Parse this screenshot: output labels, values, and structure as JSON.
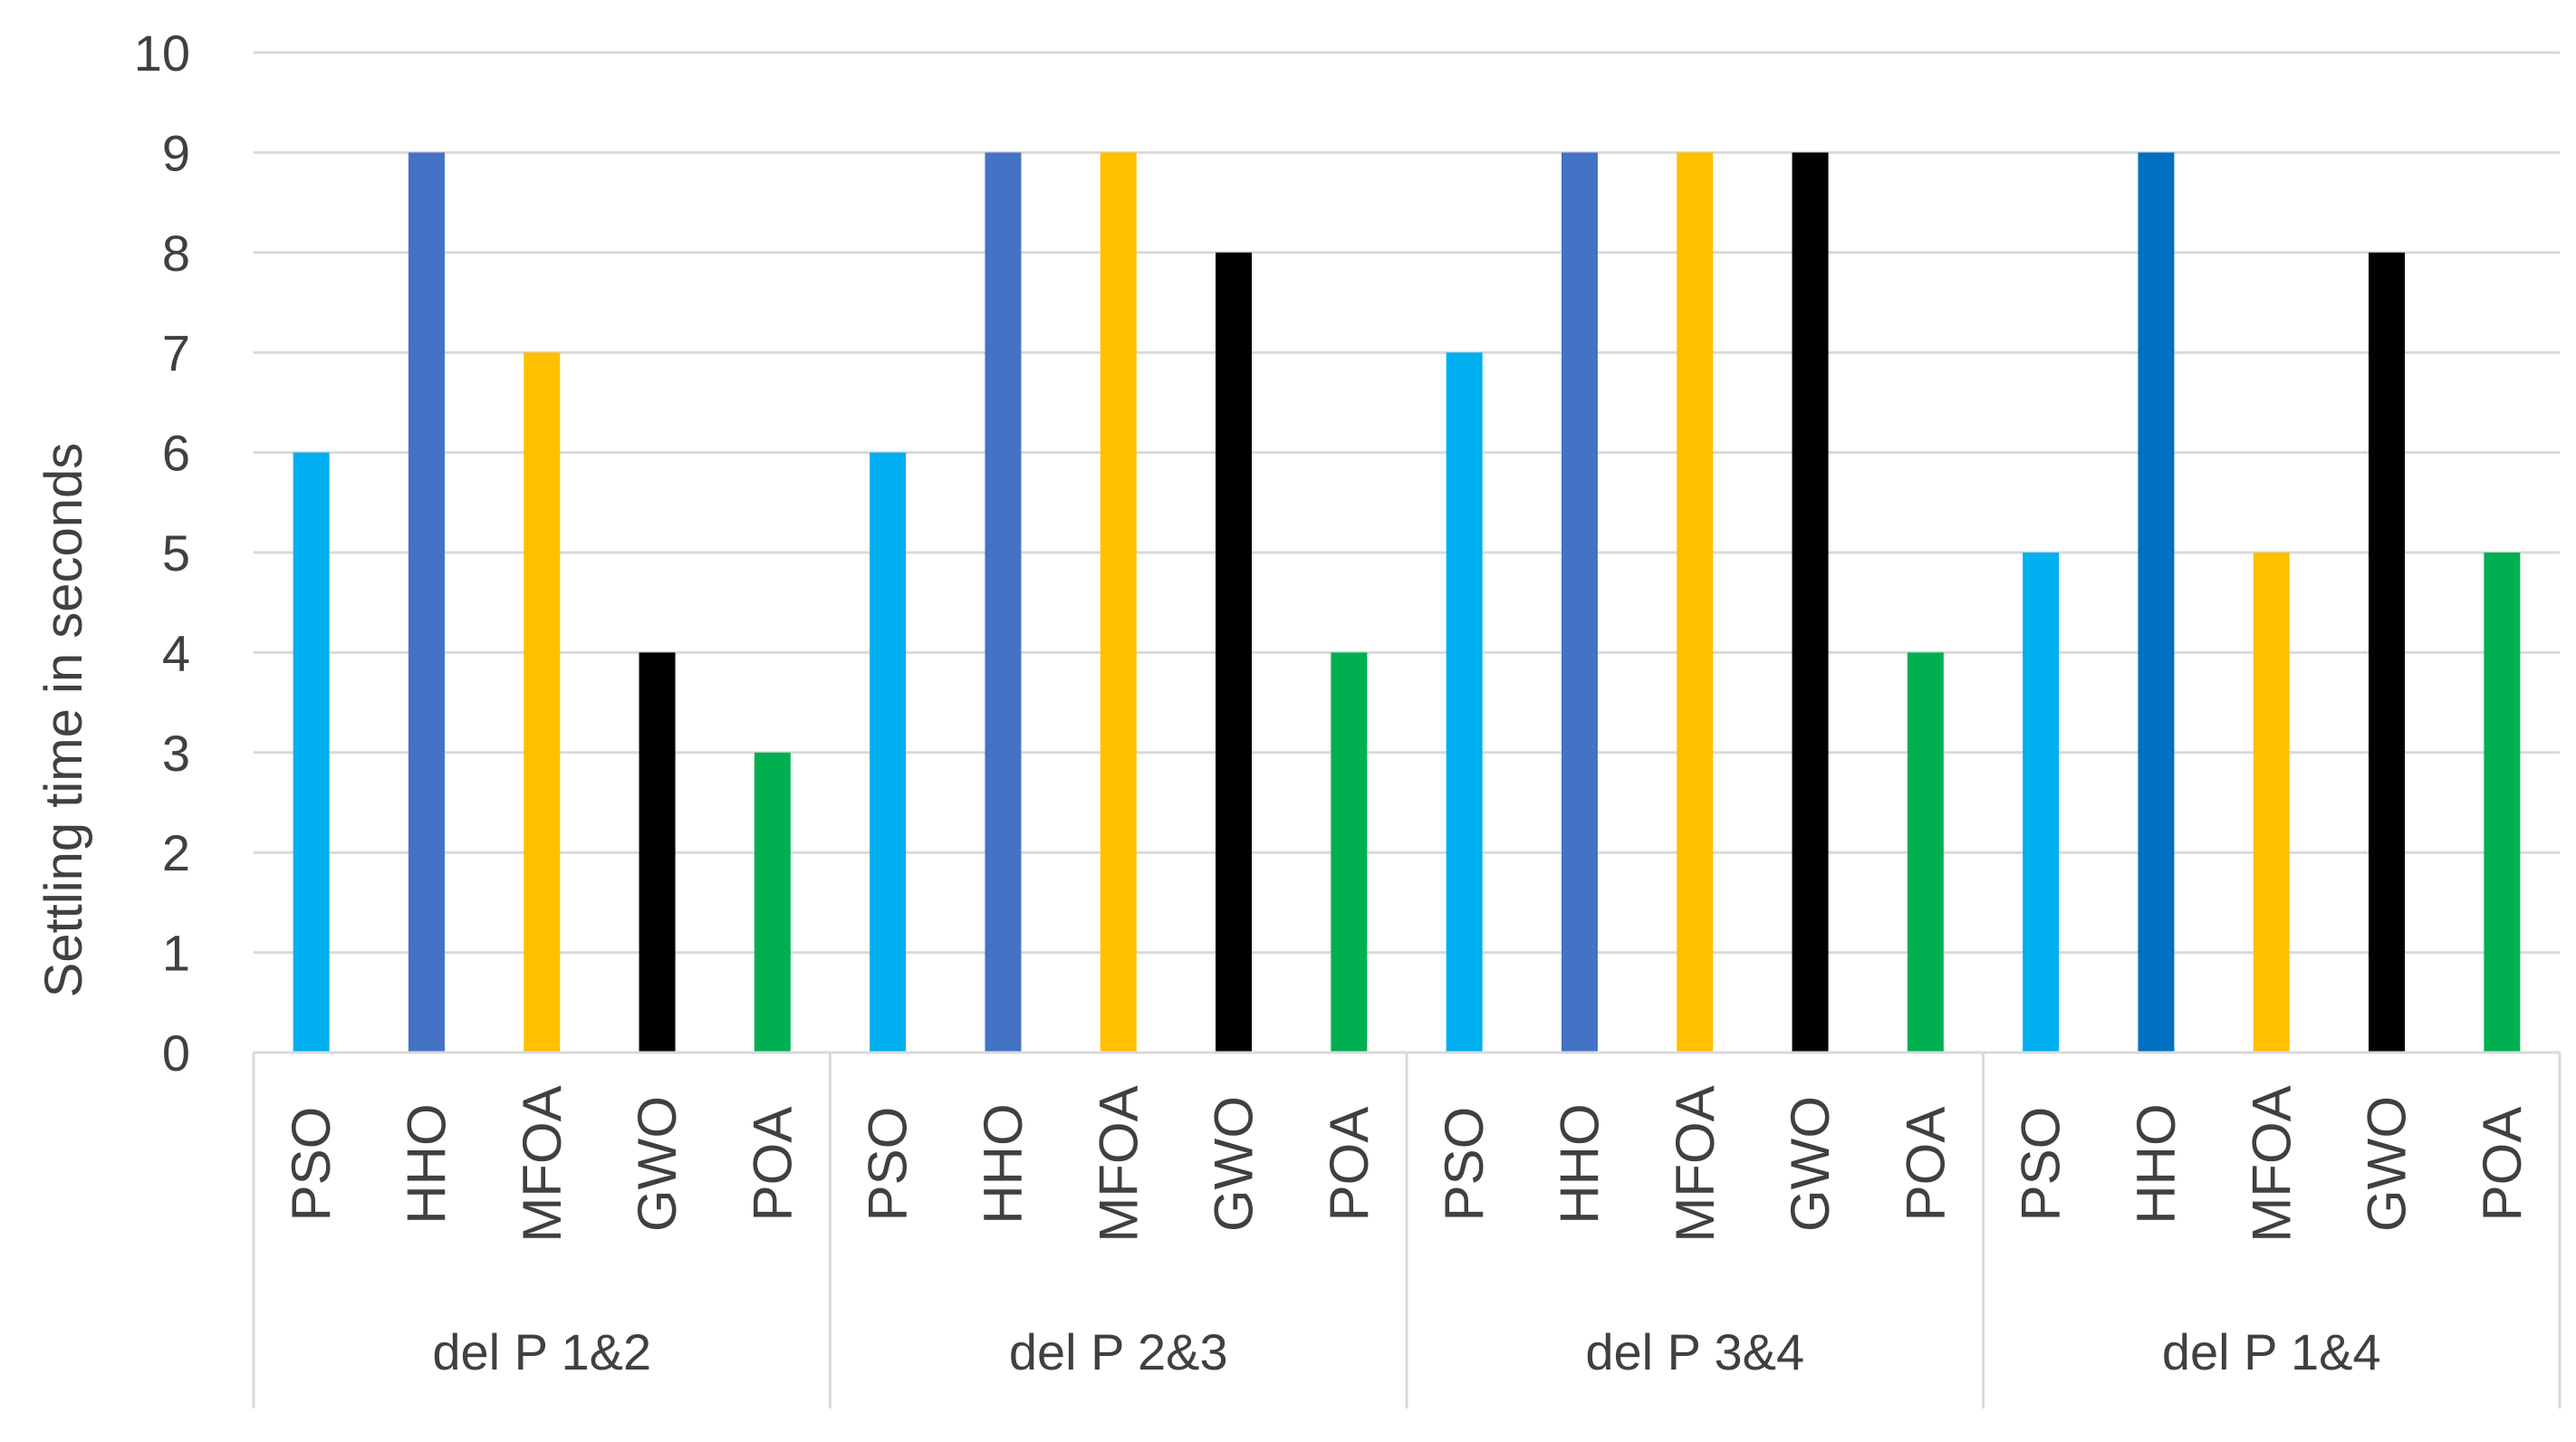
{
  "chart_data": {
    "type": "bar",
    "ylabel": "Settling time in seconds",
    "ylim": [
      0,
      10
    ],
    "yticks": [
      0,
      1,
      2,
      3,
      4,
      5,
      6,
      7,
      8,
      9,
      10
    ],
    "grid": true,
    "groups": [
      {
        "label": "del P 1&2",
        "bars": [
          {
            "category": "PSO",
            "value": 6,
            "color": "#00b0f0"
          },
          {
            "category": "HHO",
            "value": 9,
            "color": "#4472c4"
          },
          {
            "category": "MFOA",
            "value": 7,
            "color": "#ffc000"
          },
          {
            "category": "GWO",
            "value": 4,
            "color": "#000000"
          },
          {
            "category": "POA",
            "value": 3,
            "color": "#00b050"
          }
        ]
      },
      {
        "label": "del P 2&3",
        "bars": [
          {
            "category": "PSO",
            "value": 6,
            "color": "#00b0f0"
          },
          {
            "category": "HHO",
            "value": 9,
            "color": "#4472c4"
          },
          {
            "category": "MFOA",
            "value": 9,
            "color": "#ffc000"
          },
          {
            "category": "GWO",
            "value": 8,
            "color": "#000000"
          },
          {
            "category": "POA",
            "value": 4,
            "color": "#00b050"
          }
        ]
      },
      {
        "label": "del P 3&4",
        "bars": [
          {
            "category": "PSO",
            "value": 7,
            "color": "#00b0f0"
          },
          {
            "category": "HHO",
            "value": 9,
            "color": "#4472c4"
          },
          {
            "category": "MFOA",
            "value": 9,
            "color": "#ffc000"
          },
          {
            "category": "GWO",
            "value": 9,
            "color": "#000000"
          },
          {
            "category": "POA",
            "value": 4,
            "color": "#00b050"
          }
        ]
      },
      {
        "label": "del P 1&4",
        "bars": [
          {
            "category": "PSO",
            "value": 5,
            "color": "#00b0f0"
          },
          {
            "category": "HHO",
            "value": 9,
            "color": "#0070c0"
          },
          {
            "category": "MFOA",
            "value": 5,
            "color": "#ffc000"
          },
          {
            "category": "GWO",
            "value": 8,
            "color": "#000000"
          },
          {
            "category": "POA",
            "value": 5,
            "color": "#00b050"
          }
        ]
      }
    ]
  }
}
